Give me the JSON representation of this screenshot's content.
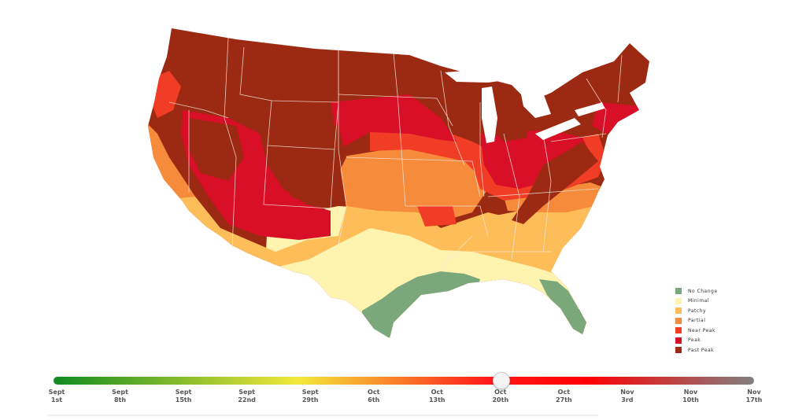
{
  "legend": {
    "items": [
      {
        "label": "No Change",
        "color": "#7ba87b"
      },
      {
        "label": "Minimal",
        "color": "#fff3b0"
      },
      {
        "label": "Patchy",
        "color": "#fdbe5a"
      },
      {
        "label": "Partial",
        "color": "#f58b3b"
      },
      {
        "label": "Near Peak",
        "color": "#f23d26"
      },
      {
        "label": "Peak",
        "color": "#d80f26"
      },
      {
        "label": "Past Peak",
        "color": "#9c2a12"
      }
    ]
  },
  "timeline": {
    "gradient": [
      "#108a1f",
      "#f4e93a",
      "#ff1a1a",
      "#ff0000",
      "#808080"
    ],
    "ticks": [
      {
        "month": "Sept",
        "day": "1st"
      },
      {
        "month": "Sept",
        "day": "8th"
      },
      {
        "month": "Sept",
        "day": "15th"
      },
      {
        "month": "Sept",
        "day": "22nd"
      },
      {
        "month": "Sept",
        "day": "29th"
      },
      {
        "month": "Oct",
        "day": "6th"
      },
      {
        "month": "Oct",
        "day": "13th"
      },
      {
        "month": "Oct",
        "day": "20th"
      },
      {
        "month": "Oct",
        "day": "27th"
      },
      {
        "month": "Nov",
        "day": "3rd"
      },
      {
        "month": "Nov",
        "day": "10th"
      },
      {
        "month": "Nov",
        "day": "17th"
      }
    ],
    "selected_index": 7
  }
}
